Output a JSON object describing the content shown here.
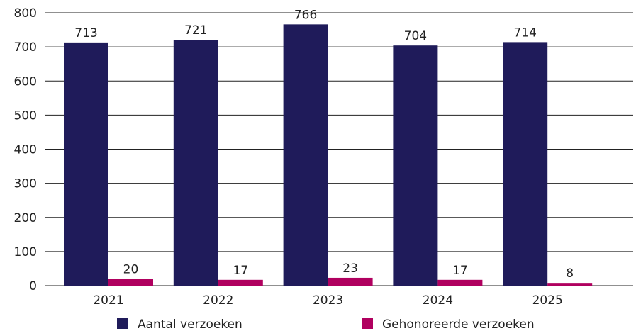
{
  "chart_data": {
    "type": "bar",
    "categories": [
      "2021",
      "2022",
      "2023",
      "2024",
      "2025"
    ],
    "series": [
      {
        "name": "Aantal verzoeken",
        "values": [
          713,
          721,
          766,
          704,
          714
        ],
        "color": "#1f1b5a"
      },
      {
        "name": "Gehonoreerde verzoeken",
        "values": [
          20,
          17,
          23,
          17,
          8
        ],
        "color": "#b0005f"
      }
    ],
    "ylim": [
      0,
      800
    ],
    "yticks": [
      0,
      100,
      200,
      300,
      400,
      500,
      600,
      700,
      800
    ],
    "grid": true,
    "legend_position": "bottom"
  }
}
